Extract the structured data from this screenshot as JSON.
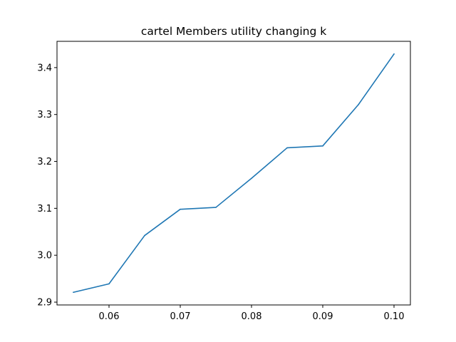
{
  "chart_data": {
    "type": "line",
    "title": "cartel Members utility changing k",
    "xlabel": "",
    "ylabel": "",
    "xlim": [
      0.0527,
      0.1023
    ],
    "ylim": [
      2.894,
      3.456
    ],
    "xticks": [
      "0.06",
      "0.07",
      "0.08",
      "0.09",
      "0.10"
    ],
    "yticks": [
      "2.9",
      "3.0",
      "3.1",
      "3.2",
      "3.3",
      "3.4"
    ],
    "grid": false,
    "series": [
      {
        "color": "#1f77b4",
        "x": [
          0.055,
          0.06,
          0.065,
          0.07,
          0.075,
          0.08,
          0.085,
          0.09,
          0.095,
          0.1
        ],
        "y": [
          2.921,
          2.939,
          3.042,
          3.098,
          3.102,
          3.164,
          3.229,
          3.233,
          3.321,
          3.429
        ]
      }
    ]
  }
}
